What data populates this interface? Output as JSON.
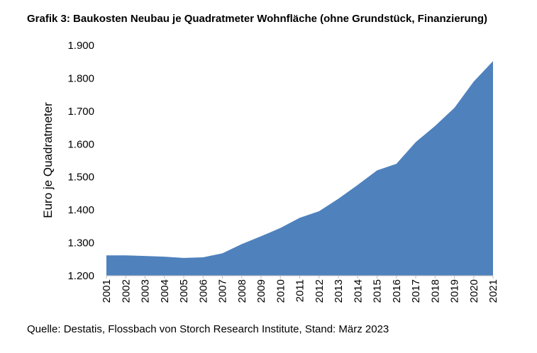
{
  "chart_data": {
    "type": "area",
    "title": "Grafik 3: Baukosten Neubau je Quadratmeter Wohnfläche (ohne Grundstück, Finanzierung)",
    "xlabel": "",
    "ylabel": "Euro je Quadratmeter",
    "source": "Quelle: Destatis, Flossbach von Storch Research Institute, Stand: März 2023",
    "categories": [
      "2001",
      "2002",
      "2003",
      "2004",
      "2005",
      "2006",
      "2007",
      "2008",
      "2009",
      "2010",
      "2011",
      "2012",
      "2013",
      "2014",
      "2015",
      "2016",
      "2017",
      "2018",
      "2019",
      "2020",
      "2021"
    ],
    "series": [
      {
        "values": [
          1262,
          1262,
          1260,
          1258,
          1254,
          1256,
          1268,
          1296,
          1320,
          1345,
          1376,
          1396,
          1434,
          1476,
          1520,
          1540,
          1606,
          1655,
          1710,
          1790,
          1852
        ]
      }
    ],
    "ylim": [
      1200,
      1900
    ],
    "yticks": [
      1200,
      1300,
      1400,
      1500,
      1600,
      1700,
      1800,
      1900
    ],
    "ytick_labels": [
      "1.200",
      "1.300",
      "1.400",
      "1.500",
      "1.600",
      "1.700",
      "1.800",
      "1.900"
    ],
    "grid": false,
    "legend": "none",
    "colors": {
      "area": "#4f81bd",
      "axis": "#bfbfbf"
    }
  }
}
